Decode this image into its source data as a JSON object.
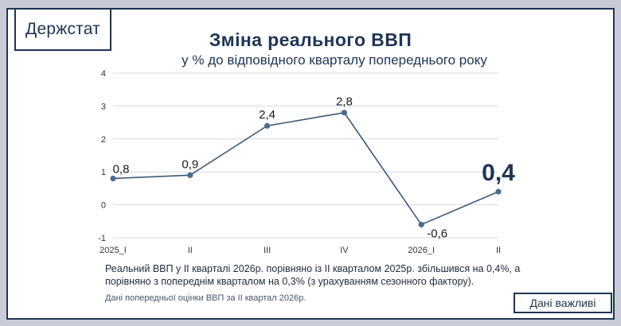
{
  "logo": "Держстат",
  "badge": "Дані важливі",
  "note": "Реальний ВВП у II кварталі 2026р. порівняно із II кварталом 2025р. збільшився на 0,4%, а порівняно з попереднім кварталом на 0,3% (з урахуванням сезонного фактору).",
  "footnote": "Дані попередньої оцінки ВВП за II квартал 2026р.",
  "chart_data": {
    "type": "line",
    "title": "Зміна реального ВВП",
    "subtitle": "у % до відповідного кварталу попереднього року",
    "categories": [
      "2025_I",
      "II",
      "III",
      "IV",
      "2026_I",
      "II"
    ],
    "values": [
      0.8,
      0.9,
      2.4,
      2.8,
      -0.6,
      0.4
    ],
    "value_labels": [
      "0,8",
      "0,9",
      "2,4",
      "2,8",
      "-0,6",
      "0,4"
    ],
    "highlight_index": 5,
    "yticks": [
      4,
      3,
      2,
      1,
      0,
      -1
    ],
    "ylim": [
      -1,
      4
    ],
    "grid": "horizontal",
    "line_color": "#3e5a78",
    "marker_color": "#4b6b8c",
    "grid_color": "#d5dae2",
    "text_color": "#1f3552"
  }
}
